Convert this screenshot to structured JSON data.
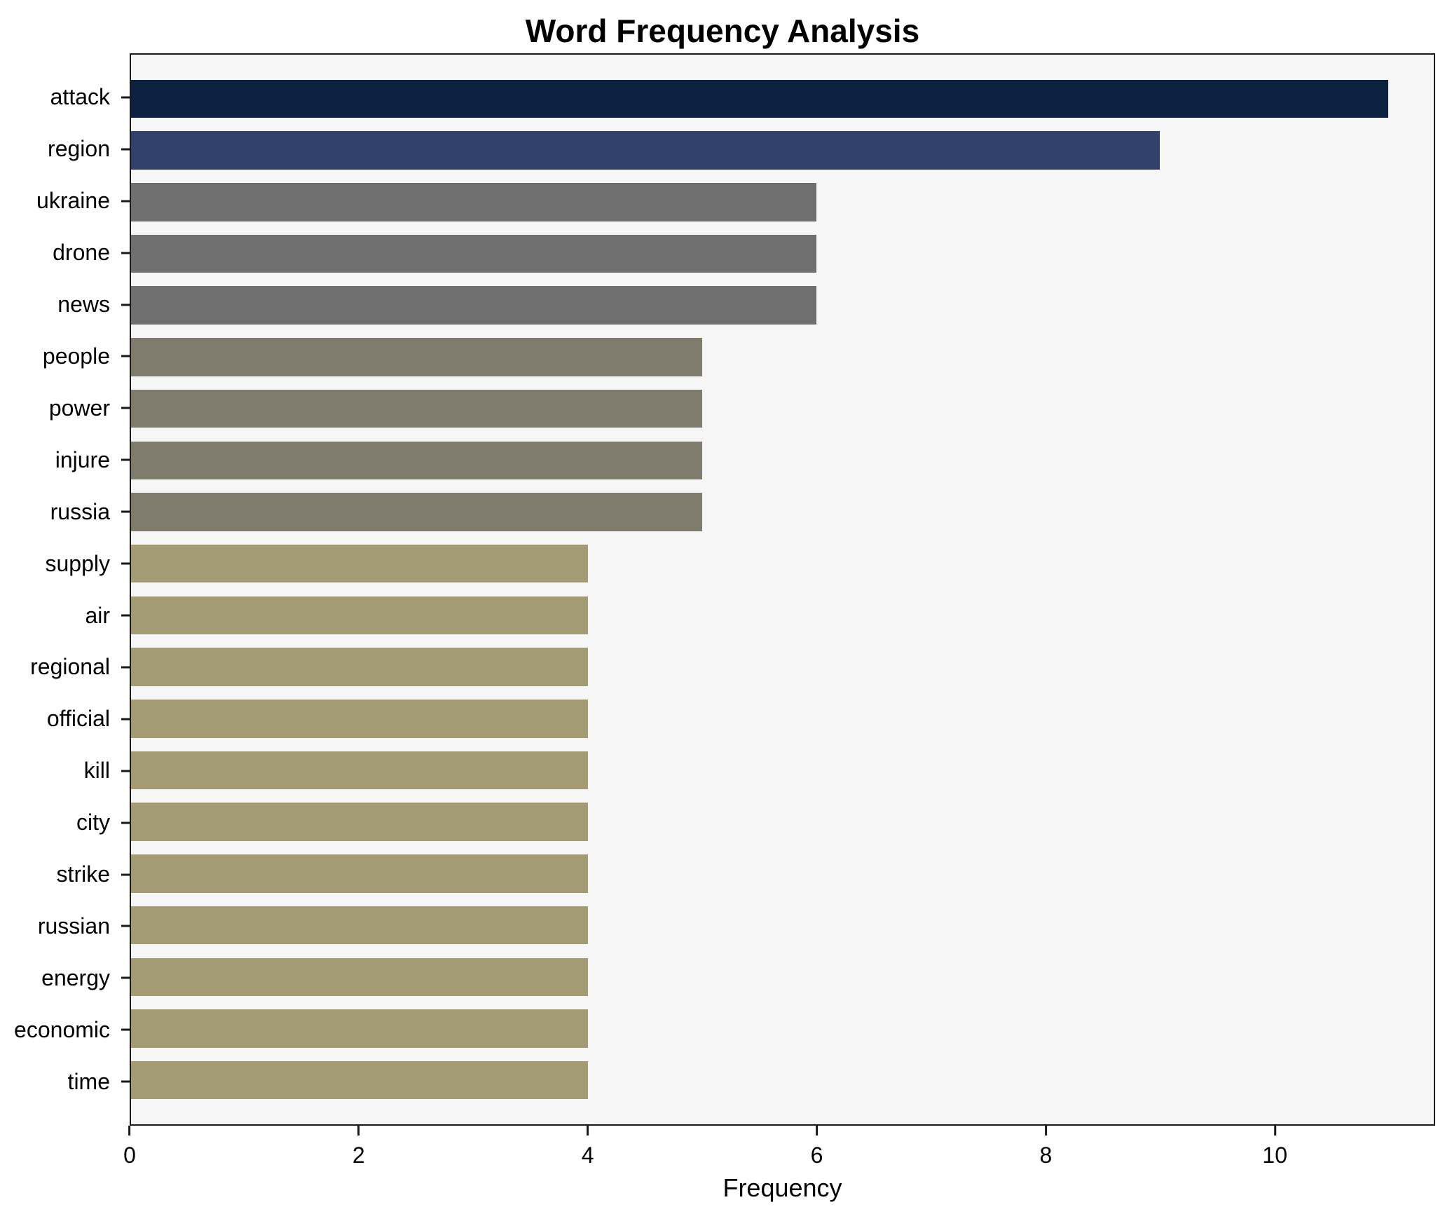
{
  "title": "Word Frequency Analysis",
  "xlabel": "Frequency",
  "chart_data": {
    "type": "bar",
    "orientation": "horizontal",
    "title": "Word Frequency Analysis",
    "xlabel": "Frequency",
    "ylabel": "",
    "categories": [
      "attack",
      "region",
      "ukraine",
      "drone",
      "news",
      "people",
      "power",
      "injure",
      "russia",
      "supply",
      "air",
      "regional",
      "official",
      "kill",
      "city",
      "strike",
      "russian",
      "energy",
      "economic",
      "time"
    ],
    "values": [
      11,
      9,
      6,
      6,
      6,
      5,
      5,
      5,
      5,
      4,
      4,
      4,
      4,
      4,
      4,
      4,
      4,
      4,
      4,
      4
    ],
    "colors": [
      "#0c2140",
      "#32416b",
      "#6f6f6f",
      "#6f6f6f",
      "#6f6f6f",
      "#7f7c6d",
      "#7f7c6d",
      "#7f7c6d",
      "#7f7c6d",
      "#a39b73",
      "#a39b73",
      "#a39b73",
      "#a39b73",
      "#a39b73",
      "#a39b73",
      "#a39b73",
      "#a39b73",
      "#a39b73",
      "#a39b73",
      "#a39b73"
    ],
    "xticks": [
      0,
      2,
      4,
      6,
      8,
      10
    ],
    "xlim": [
      0,
      11.4
    ],
    "grid": false,
    "plot_background": "#f6f6f6",
    "legend": "none"
  }
}
